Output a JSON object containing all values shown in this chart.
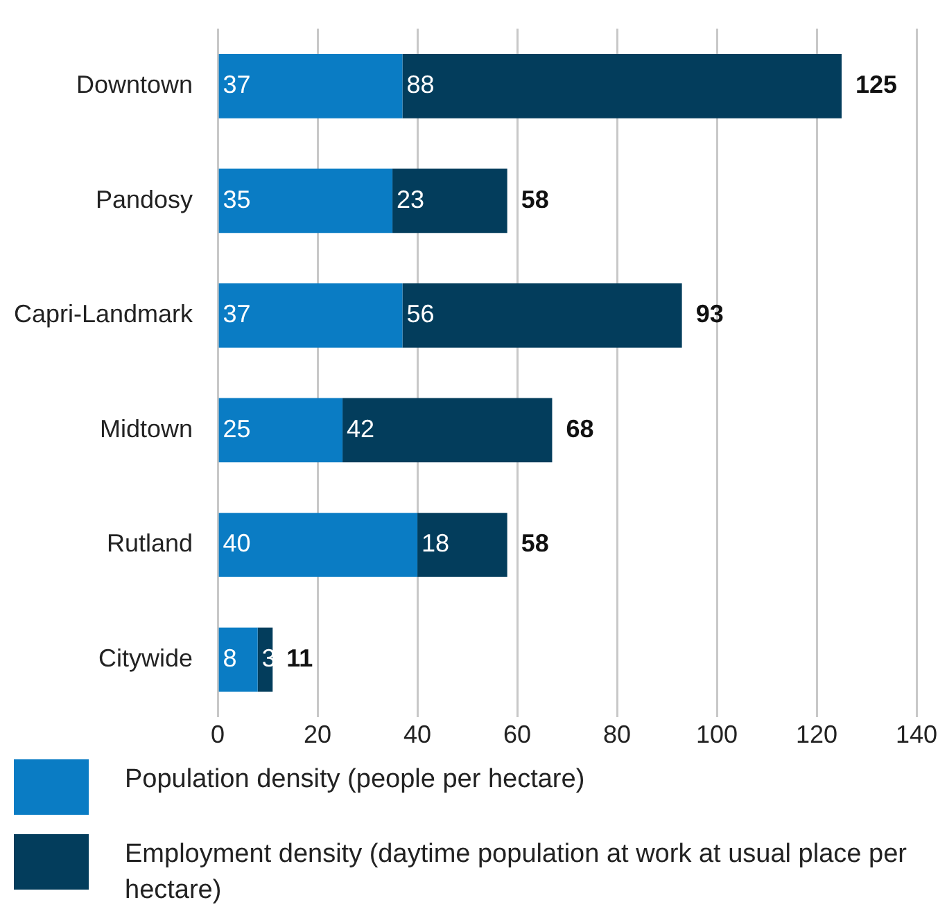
{
  "chart_data": {
    "type": "bar",
    "orientation": "horizontal",
    "stacked": true,
    "categories": [
      "Downtown",
      "Pandosy",
      "Capri-Landmark",
      "Midtown",
      "Rutland",
      "Citywide"
    ],
    "series": [
      {
        "name": "Population density (people per hectare)",
        "color": "#0a7cc4",
        "values": [
          37,
          35,
          37,
          25,
          40,
          8
        ]
      },
      {
        "name": "Employment density (daytime population at work at usual place per hectare)",
        "color": "#033d5c",
        "values": [
          88,
          23,
          56,
          42,
          18,
          3
        ]
      }
    ],
    "totals": [
      "125",
      "58",
      "93",
      "68",
      "58",
      "11"
    ],
    "data_labels": true,
    "xlim": [
      0,
      140
    ],
    "xticks": [
      0,
      20,
      40,
      60,
      80,
      100,
      120,
      140
    ],
    "grid": "x",
    "legend": "bottom left"
  }
}
